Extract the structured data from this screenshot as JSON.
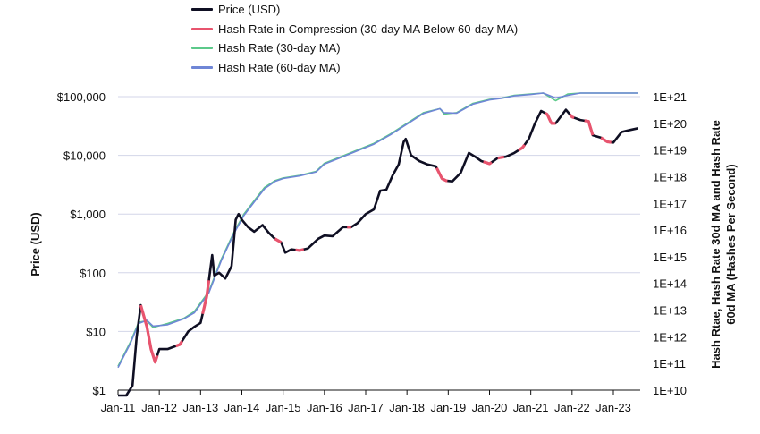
{
  "chart_data": {
    "type": "line",
    "title": "",
    "xlabel": "",
    "ylabel_left": "Price (USD)",
    "ylabel_right_line1": "Hash Rtae, Hash Rate 30d MA and Hash Rate",
    "ylabel_right_line2": "60d MA (Hashes Per Second)",
    "x_tick_labels": [
      "Jan-11",
      "Jan-12",
      "Jan-13",
      "Jan-14",
      "Jan-15",
      "Jan-16",
      "Jan-17",
      "Jan-18",
      "Jan-19",
      "Jan-20",
      "Jan-21",
      "Jan-22",
      "Jan-23"
    ],
    "x_range": [
      2011.0,
      2023.65
    ],
    "y_left_scale": "log",
    "y_left_range": [
      1,
      100000
    ],
    "y_left_tick_values": [
      1,
      10,
      100,
      1000,
      10000,
      100000
    ],
    "y_left_tick_labels": [
      "$1",
      "$10",
      "$100",
      "$1,000",
      "$10,000",
      "$100,000"
    ],
    "y_right_scale": "log",
    "y_right_range_exponent": [
      10,
      21
    ],
    "y_right_tick_labels": [
      "1E+10",
      "1E+11",
      "1E+12",
      "1E+13",
      "1E+14",
      "1E+15",
      "1E+16",
      "1E+17",
      "1E+18",
      "1E+19",
      "1E+20",
      "1E+21"
    ],
    "grid": "horizontal",
    "legend_placement": "top",
    "legend": [
      {
        "label": "Price (USD)",
        "color": "#0f0f23"
      },
      {
        "label": "Hash Rate in Compression (30-day MA Below 60-day MA)",
        "color": "#e8546e"
      },
      {
        "label": "Hash Rate (30-day MA)",
        "color": "#5cc98a"
      },
      {
        "label": "Hash Rate (60-day MA)",
        "color": "#6f86d6"
      }
    ],
    "series": [
      {
        "name": "Price (USD)",
        "axis": "left",
        "color": "#0f0f23",
        "x": [
          2011.0,
          2011.2,
          2011.35,
          2011.45,
          2011.55,
          2011.7,
          2011.8,
          2011.9,
          2012.0,
          2012.2,
          2012.5,
          2012.7,
          2012.85,
          2013.0,
          2013.15,
          2013.28,
          2013.33,
          2013.45,
          2013.6,
          2013.75,
          2013.85,
          2013.92,
          2014.0,
          2014.15,
          2014.3,
          2014.5,
          2014.65,
          2014.8,
          2014.95,
          2015.05,
          2015.2,
          2015.4,
          2015.6,
          2015.85,
          2016.0,
          2016.2,
          2016.45,
          2016.65,
          2016.8,
          2017.0,
          2017.2,
          2017.35,
          2017.5,
          2017.65,
          2017.8,
          2017.92,
          2017.97,
          2018.1,
          2018.3,
          2018.5,
          2018.7,
          2018.85,
          2018.95,
          2019.1,
          2019.3,
          2019.5,
          2019.65,
          2019.8,
          2020.0,
          2020.2,
          2020.4,
          2020.6,
          2020.8,
          2020.95,
          2021.1,
          2021.25,
          2021.4,
          2021.5,
          2021.6,
          2021.85,
          2022.0,
          2022.2,
          2022.4,
          2022.5,
          2022.7,
          2022.85,
          2023.0,
          2023.2,
          2023.4,
          2023.6
        ],
        "y": [
          0.3,
          0.8,
          1.2,
          8,
          28,
          12,
          5,
          3,
          5,
          5,
          6,
          10,
          12,
          14,
          40,
          200,
          90,
          100,
          80,
          130,
          800,
          1000,
          800,
          600,
          500,
          650,
          480,
          380,
          330,
          220,
          250,
          240,
          260,
          380,
          430,
          420,
          600,
          600,
          700,
          1000,
          1200,
          2500,
          2600,
          4500,
          7000,
          17000,
          19000,
          10000,
          8000,
          7000,
          6500,
          4000,
          3700,
          3600,
          5000,
          11000,
          9500,
          8000,
          7200,
          9000,
          9500,
          11000,
          13500,
          19000,
          35000,
          57000,
          50000,
          35000,
          35000,
          60000,
          45000,
          40000,
          38000,
          22000,
          20000,
          17000,
          16500,
          25000,
          27000,
          29000
        ]
      },
      {
        "name": "Hash Rate (30-day MA)",
        "axis": "right",
        "color": "#5cc98a",
        "x": [
          2011.0,
          2011.3,
          2011.5,
          2011.7,
          2011.85,
          2012.2,
          2012.6,
          2012.85,
          2013.2,
          2013.5,
          2013.8,
          2014.05,
          2014.3,
          2014.55,
          2014.8,
          2015.0,
          2015.4,
          2015.8,
          2016.0,
          2016.4,
          2016.8,
          2017.2,
          2017.6,
          2018.0,
          2018.4,
          2018.8,
          2018.9,
          2019.2,
          2019.6,
          2020.0,
          2020.3,
          2020.6,
          2021.0,
          2021.3,
          2021.6,
          2021.9,
          2022.2,
          2022.5,
          2022.8,
          2023.0,
          2023.3,
          2023.6
        ],
        "exp": [
          10.9,
          11.8,
          12.55,
          12.6,
          12.35,
          12.5,
          12.7,
          12.95,
          13.7,
          14.9,
          15.9,
          16.6,
          17.1,
          17.6,
          17.85,
          17.95,
          18.05,
          18.2,
          18.5,
          18.75,
          19.0,
          19.25,
          19.6,
          20.0,
          20.4,
          20.55,
          20.35,
          20.4,
          20.75,
          20.9,
          20.95,
          21.05,
          21.1,
          21.2,
          20.85,
          21.1,
          21.3,
          21.35,
          21.45,
          21.5,
          21.62,
          21.72
        ]
      },
      {
        "name": "Hash Rate (60-day MA)",
        "axis": "right",
        "color": "#6f86d6",
        "x": [
          2011.0,
          2011.3,
          2011.5,
          2011.7,
          2011.85,
          2012.2,
          2012.6,
          2012.85,
          2013.2,
          2013.5,
          2013.8,
          2014.05,
          2014.3,
          2014.55,
          2014.8,
          2015.0,
          2015.4,
          2015.8,
          2016.0,
          2016.4,
          2016.8,
          2017.2,
          2017.6,
          2018.0,
          2018.4,
          2018.8,
          2018.9,
          2019.2,
          2019.6,
          2020.0,
          2020.3,
          2020.6,
          2021.0,
          2021.3,
          2021.6,
          2021.9,
          2022.2,
          2022.5,
          2022.8,
          2023.0,
          2023.3,
          2023.6
        ],
        "exp": [
          10.85,
          11.75,
          12.5,
          12.62,
          12.4,
          12.45,
          12.68,
          12.9,
          13.65,
          14.85,
          15.85,
          16.55,
          17.05,
          17.55,
          17.82,
          17.93,
          18.03,
          18.18,
          18.47,
          18.72,
          18.97,
          19.22,
          19.57,
          19.97,
          20.37,
          20.55,
          20.4,
          20.38,
          20.72,
          20.88,
          20.94,
          21.03,
          21.08,
          21.18,
          20.95,
          21.05,
          21.28,
          21.33,
          21.43,
          21.48,
          21.6,
          21.7
        ]
      }
    ],
    "compression_segments_x": [
      [
        2011.55,
        2011.95
      ],
      [
        2012.4,
        2012.55
      ],
      [
        2013.05,
        2013.2
      ],
      [
        2014.8,
        2014.95
      ],
      [
        2015.3,
        2015.5
      ],
      [
        2016.55,
        2016.65
      ],
      [
        2018.72,
        2018.98
      ],
      [
        2019.85,
        2020.05
      ],
      [
        2020.2,
        2020.35
      ],
      [
        2020.7,
        2020.85
      ],
      [
        2021.35,
        2021.6
      ],
      [
        2021.95,
        2022.05
      ],
      [
        2022.3,
        2022.5
      ],
      [
        2022.7,
        2022.95
      ]
    ]
  }
}
